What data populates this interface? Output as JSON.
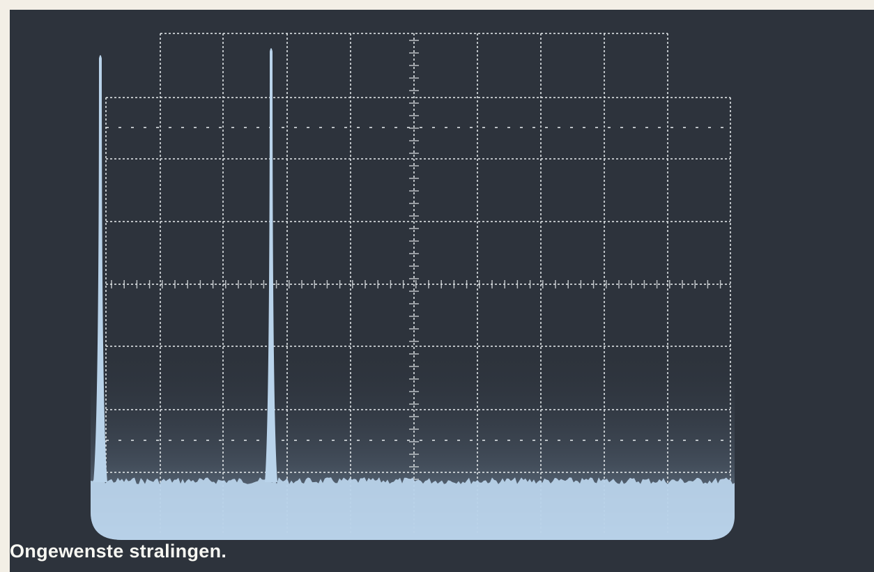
{
  "caption": "Ongewenste stralingen.",
  "colors": {
    "background": "#2d333c",
    "graticule": "#dfe3e6",
    "trace": "#b9d3ea",
    "caption": "#f7f7f2"
  }
}
